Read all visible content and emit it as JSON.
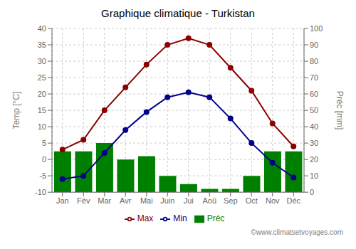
{
  "chart_data": {
    "type": "bar",
    "title": "Graphique climatique - Turkistan",
    "categories": [
      "Jan",
      "Fév",
      "Mar",
      "Avr",
      "Mai",
      "Juin",
      "Jui",
      "Aoû",
      "Sep",
      "Oct",
      "Nov",
      "Déc"
    ],
    "series": [
      {
        "name": "Préc",
        "type": "bar",
        "axis": "y2",
        "color": "#008000",
        "values": [
          25,
          25,
          30,
          20,
          22,
          10,
          5,
          2,
          2,
          10,
          25,
          25
        ]
      },
      {
        "name": "Min",
        "type": "line",
        "color": "#00008B",
        "marker": "circle",
        "values": [
          -6,
          -5,
          2,
          9,
          14.5,
          19,
          20.5,
          19,
          12.5,
          5,
          -1,
          -5.5
        ]
      },
      {
        "name": "Max",
        "type": "line",
        "color": "#8B0000",
        "marker": "circle",
        "values": [
          3,
          6,
          15,
          22,
          29,
          35,
          37,
          35,
          28,
          21,
          11,
          4
        ]
      }
    ],
    "ylabel": "Temp [°C]",
    "y2label": "Préc [mm]",
    "ylim": [
      -10,
      40
    ],
    "yticks": [
      -10,
      -5,
      0,
      5,
      10,
      15,
      20,
      25,
      30,
      35,
      40
    ],
    "y2lim": [
      0,
      100
    ],
    "y2ticks": [
      0,
      10,
      20,
      30,
      40,
      50,
      60,
      70,
      80,
      90,
      100
    ],
    "grid": true,
    "legend": "bottom",
    "annotations": [
      "©www.climatsetvoyages.com"
    ]
  }
}
